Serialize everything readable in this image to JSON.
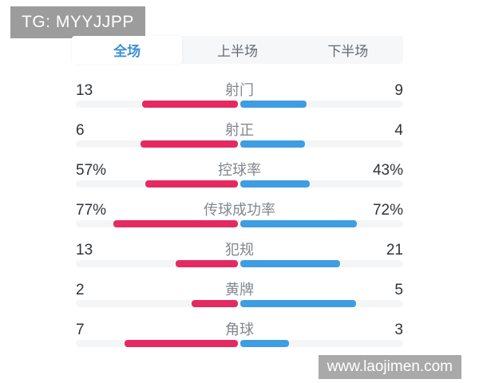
{
  "badge": {
    "text": "TG: MYYJJPP"
  },
  "tabs": [
    {
      "label": "全场",
      "selected": true
    },
    {
      "label": "上半场",
      "selected": false
    },
    {
      "label": "下半场",
      "selected": false
    }
  ],
  "stats": {
    "rows": [
      {
        "label": "射门",
        "left": "13",
        "right": "9"
      },
      {
        "label": "射正",
        "left": "6",
        "right": "4"
      },
      {
        "label": "控球率",
        "left": "57%",
        "right": "43%"
      },
      {
        "label": "传球成功率",
        "left": "77%",
        "right": "72%"
      },
      {
        "label": "犯规",
        "left": "13",
        "right": "21"
      },
      {
        "label": "黄牌",
        "left": "2",
        "right": "5"
      },
      {
        "label": "角球",
        "left": "7",
        "right": "3"
      }
    ]
  },
  "watermark": {
    "text": "www.laojimen.com"
  },
  "colors": {
    "home_bar": "#e42a60",
    "away_bar": "#3f9de2",
    "tab_active_text": "#3a8fd9",
    "badge_bg": "#9c9c9c",
    "watermark_bg": "#a9a9a9"
  },
  "chart_data": {
    "type": "bar",
    "title": "全场",
    "categories": [
      "射门",
      "射正",
      "控球率",
      "传球成功率",
      "犯规",
      "黄牌",
      "角球"
    ],
    "series": [
      {
        "name": "home",
        "color": "#e42a60",
        "values": [
          13,
          6,
          "57%",
          "77%",
          13,
          2,
          7
        ]
      },
      {
        "name": "away",
        "color": "#3f9de2",
        "values": [
          9,
          4,
          "43%",
          "72%",
          21,
          5,
          3
        ]
      }
    ],
    "layout": "paired horizontal bars growing outward from center, labels centered, values at outer edges"
  }
}
